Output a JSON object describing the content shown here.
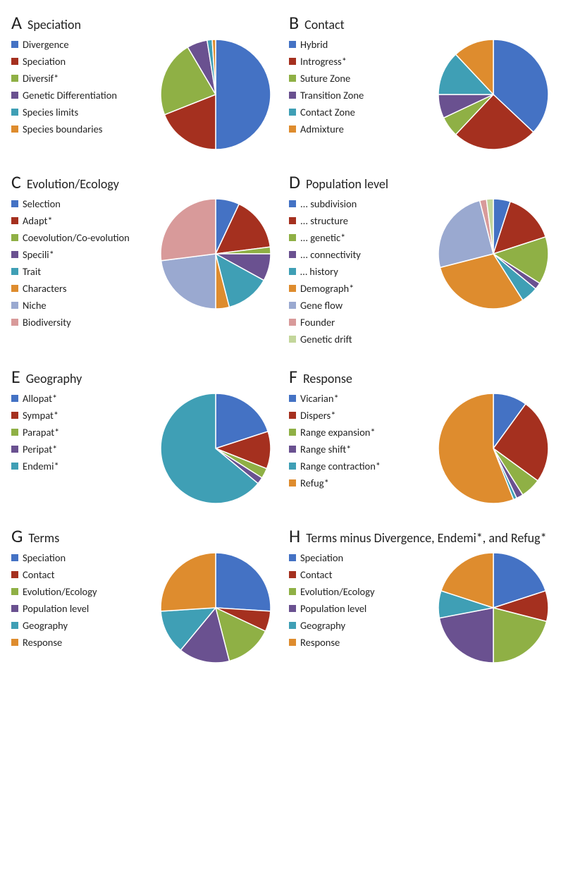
{
  "figure": {
    "background": "#ffffff",
    "text_color": "#222222",
    "letter_fontsize": 26,
    "name_fontsize": 18,
    "legend_fontsize": 14.5,
    "swatch_size": 10,
    "pie_radius": 78,
    "pie_stroke": "#ffffff",
    "pie_stroke_width": 1.5,
    "panels": [
      {
        "letter": "A",
        "title": "Speciation",
        "slices": [
          {
            "label": "Divergence",
            "color": "#4472c4",
            "value": 50
          },
          {
            "label": "Speciation",
            "color": "#a5301f",
            "value": 19
          },
          {
            "label": "Diversif*",
            "color": "#8fb045",
            "value": 22.5
          },
          {
            "label": "Genetic Differentiation",
            "color": "#6a5190",
            "value": 6
          },
          {
            "label": "Species limits",
            "color": "#3f9fb5",
            "value": 1.5
          },
          {
            "label": "Species boundaries",
            "color": "#de8c2e",
            "value": 1
          }
        ]
      },
      {
        "letter": "B",
        "title": "Contact",
        "slices": [
          {
            "label": "Hybrid",
            "color": "#4472c4",
            "value": 37
          },
          {
            "label": "Introgress*",
            "color": "#a5301f",
            "value": 25
          },
          {
            "label": "Suture Zone",
            "color": "#8fb045",
            "value": 6
          },
          {
            "label": "Transition Zone",
            "color": "#6a5190",
            "value": 7
          },
          {
            "label": "Contact Zone",
            "color": "#3f9fb5",
            "value": 13
          },
          {
            "label": "Admixture",
            "color": "#de8c2e",
            "value": 12
          }
        ]
      },
      {
        "letter": "C",
        "title": "Evolution/Ecology",
        "slices": [
          {
            "label": "Selection",
            "color": "#4472c4",
            "value": 7
          },
          {
            "label": "Adapt*",
            "color": "#a5301f",
            "value": 16
          },
          {
            "label": "Coevolution/Co-evolution",
            "color": "#8fb045",
            "value": 2
          },
          {
            "label": "Specili*",
            "color": "#6a5190",
            "value": 8
          },
          {
            "label": "Trait",
            "color": "#3f9fb5",
            "value": 13
          },
          {
            "label": "Characters",
            "color": "#de8c2e",
            "value": 4
          },
          {
            "label": "Niche",
            "color": "#9aa9d0",
            "value": 23
          },
          {
            "label": "Biodiversity",
            "color": "#d89a9a",
            "value": 27
          }
        ]
      },
      {
        "letter": "D",
        "title": "Population level",
        "slices": [
          {
            "label": "... subdivision",
            "color": "#4472c4",
            "value": 5
          },
          {
            "label": "... structure",
            "color": "#a5301f",
            "value": 15
          },
          {
            "label": "... genetic*",
            "color": "#8fb045",
            "value": 14
          },
          {
            "label": "... connectivity",
            "color": "#6a5190",
            "value": 2
          },
          {
            "label": "… history",
            "color": "#3f9fb5",
            "value": 5
          },
          {
            "label": "Demograph*",
            "color": "#de8c2e",
            "value": 30
          },
          {
            "label": "Gene flow",
            "color": "#9aa9d0",
            "value": 25
          },
          {
            "label": "Founder",
            "color": "#d89a9a",
            "value": 2
          },
          {
            "label": "Genetic drift",
            "color": "#c3d69b",
            "value": 2
          }
        ]
      },
      {
        "letter": "E",
        "title": "Geography",
        "slices": [
          {
            "label": "Allopat*",
            "color": "#4472c4",
            "value": 20
          },
          {
            "label": "Sympat*",
            "color": "#a5301f",
            "value": 11
          },
          {
            "label": "Parapat*",
            "color": "#8fb045",
            "value": 3
          },
          {
            "label": "Peripat*",
            "color": "#6a5190",
            "value": 2
          },
          {
            "label": "Endemi*",
            "color": "#3f9fb5",
            "value": 64
          }
        ]
      },
      {
        "letter": "F",
        "title": "Response",
        "slices": [
          {
            "label": "Vicarian*",
            "color": "#4472c4",
            "value": 10
          },
          {
            "label": "Dispers*",
            "color": "#a5301f",
            "value": 25
          },
          {
            "label": "Range expansion*",
            "color": "#8fb045",
            "value": 6
          },
          {
            "label": "Range shift*",
            "color": "#6a5190",
            "value": 2
          },
          {
            "label": "Range contraction*",
            "color": "#3f9fb5",
            "value": 1
          },
          {
            "label": "Refug*",
            "color": "#de8c2e",
            "value": 56
          }
        ]
      },
      {
        "letter": "G",
        "title": "Terms",
        "slices": [
          {
            "label": "Speciation",
            "color": "#4472c4",
            "value": 26
          },
          {
            "label": "Contact",
            "color": "#a5301f",
            "value": 6
          },
          {
            "label": "Evolution/Ecology",
            "color": "#8fb045",
            "value": 14
          },
          {
            "label": "Population level",
            "color": "#6a5190",
            "value": 15
          },
          {
            "label": "Geography",
            "color": "#3f9fb5",
            "value": 13
          },
          {
            "label": "Response",
            "color": "#de8c2e",
            "value": 26
          }
        ]
      },
      {
        "letter": "H",
        "title": "Terms minus Divergence, Endemi*, and Refug*",
        "slices": [
          {
            "label": "Speciation",
            "color": "#4472c4",
            "value": 20
          },
          {
            "label": "Contact",
            "color": "#a5301f",
            "value": 9
          },
          {
            "label": "Evolution/Ecology",
            "color": "#8fb045",
            "value": 21
          },
          {
            "label": "Population level",
            "color": "#6a5190",
            "value": 22
          },
          {
            "label": "Geography",
            "color": "#3f9fb5",
            "value": 8
          },
          {
            "label": "Response",
            "color": "#de8c2e",
            "value": 20
          }
        ]
      }
    ]
  }
}
